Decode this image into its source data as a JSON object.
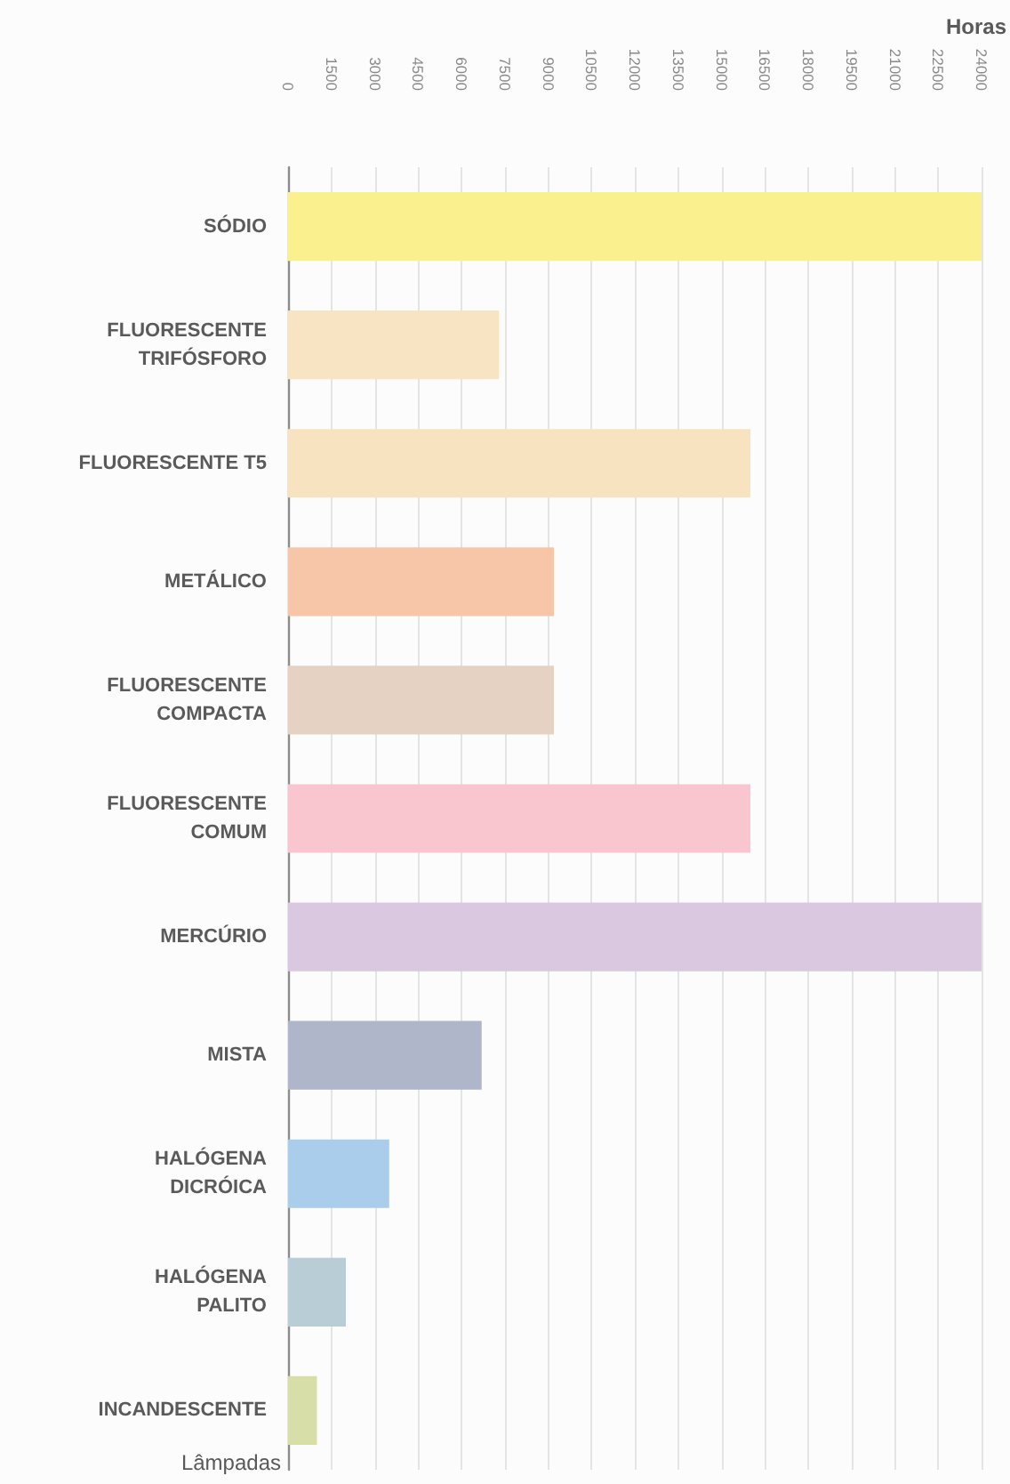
{
  "chart_data": {
    "type": "bar",
    "orientation": "horizontal",
    "xlabel": "Horas",
    "ylabel": "Lâmpadas",
    "categories": [
      "SÓDIO",
      "FLUORESCENTE\nTRIFÓSFORO",
      "FLUORESCENTE T5",
      "METÁLICO",
      "FLUORESCENTE\nCOMPACTA",
      "FLUORESCENTE\nCOMUM",
      "MERCÚRIO",
      "MISTA",
      "HALÓGENA\nDICRÓICA",
      "HALÓGENA\nPALITO",
      "INCANDESCENTE"
    ],
    "values": [
      24000,
      7300,
      16000,
      9200,
      9200,
      16000,
      24000,
      6700,
      3500,
      2000,
      1000
    ],
    "colors": [
      "#faf08e",
      "#f8e4c2",
      "#f8e3c0",
      "#f7c6a8",
      "#e6d2c2",
      "#f9c5ce",
      "#dac8e0",
      "#afb6ca",
      "#a9cdeb",
      "#b9cdd6",
      "#d8dea8"
    ],
    "xlim": [
      0,
      24000
    ],
    "xticks": [
      0,
      1500,
      3000,
      4500,
      6000,
      7500,
      9000,
      10500,
      12000,
      13500,
      15000,
      16500,
      18000,
      19500,
      21000,
      22500,
      24000
    ],
    "grid": "x"
  }
}
